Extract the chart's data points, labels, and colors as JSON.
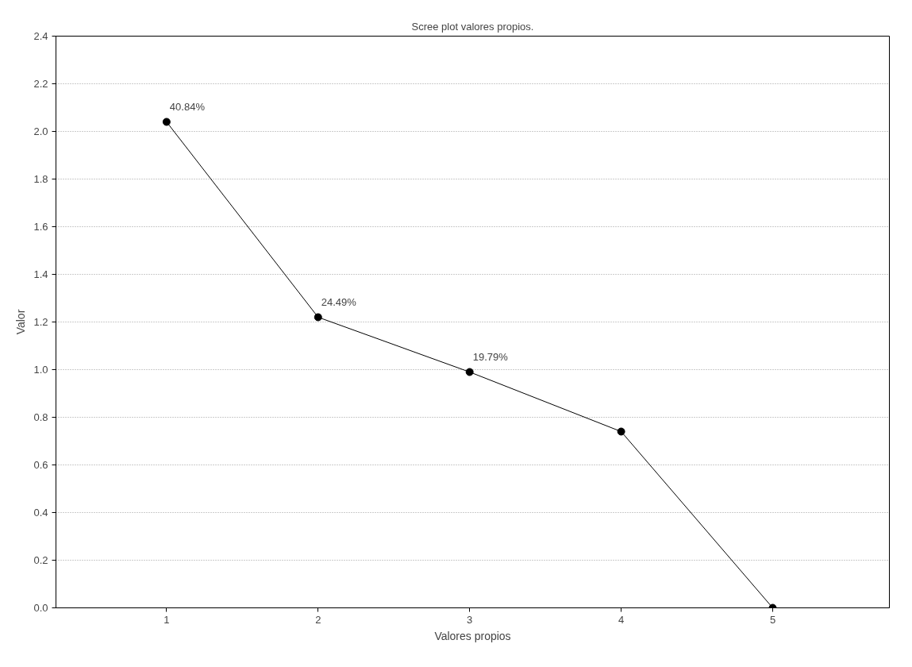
{
  "chart_data": {
    "type": "line",
    "title": "Scree plot valores propios.",
    "xlabel": "Valores propios",
    "ylabel": "Valor",
    "x": [
      1,
      2,
      3,
      4,
      5
    ],
    "series": [
      {
        "color": "#000000",
        "values": [
          2.04,
          1.22,
          0.99,
          0.74,
          0.0
        ]
      }
    ],
    "xlim": [
      0.27,
      5.77
    ],
    "xticks": [
      1,
      2,
      3,
      4,
      5
    ],
    "ylim": [
      0,
      2.4
    ],
    "yticks": [
      {
        "value": 0,
        "label": "0.0"
      },
      0.2,
      0.4,
      0.6,
      0.8,
      {
        "value": 1,
        "label": "1.0"
      },
      1.2,
      1.4,
      1.6,
      1.8,
      {
        "value": 2,
        "label": "2.0"
      },
      2.2,
      2.4
    ],
    "grid": "y",
    "marker": "circle",
    "line_style": "solid",
    "annotations": [
      {
        "text": "40.84%",
        "x": 1,
        "y": 2.04
      },
      {
        "text": "24.49%",
        "x": 2,
        "y": 1.22
      },
      {
        "text": "19.79%",
        "x": 3,
        "y": 0.99
      }
    ]
  }
}
